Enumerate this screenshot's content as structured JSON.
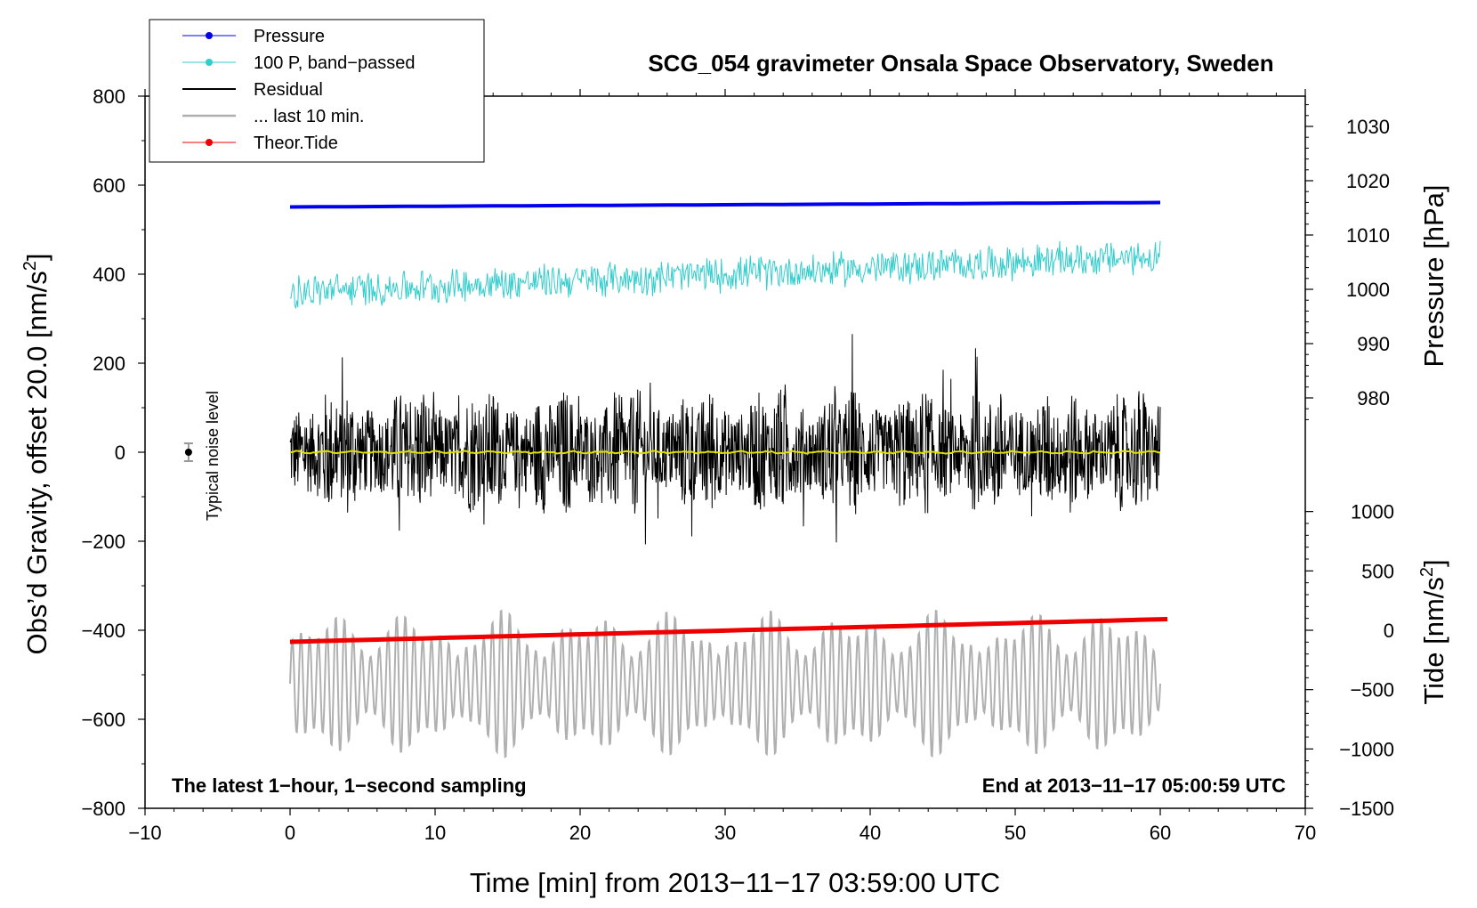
{
  "chart_data": {
    "type": "line",
    "title": "SCG_054 gravimeter Onsala Space Observatory, Sweden",
    "xlabel": "Time [min] from 2013−11−17 03:59:00 UTC",
    "ylabel_left": "Obs’d Gravity, offset 20.0 [nm/s²]",
    "ylabel_left_parts": {
      "main": "Obs’d Gravity, offset 20.0 [nm/s",
      "sup": "2",
      "close": "]"
    },
    "ylabel_right_pressure": "Pressure [hPa]",
    "ylabel_right_tide": "Tide [nm/s²]",
    "ylabel_right_tide_parts": {
      "main": "Tide [nm/s",
      "sup": "2",
      "close": "]"
    },
    "xlim": [
      -10,
      70
    ],
    "ylim": [
      -800,
      800
    ],
    "xticks": [
      -10,
      0,
      10,
      20,
      30,
      40,
      50,
      60,
      70
    ],
    "xtick_labels": [
      "−10",
      "0",
      "10",
      "20",
      "30",
      "40",
      "50",
      "60",
      "70"
    ],
    "yticks": [
      -800,
      -600,
      -400,
      -200,
      0,
      200,
      400,
      600,
      800
    ],
    "ytick_labels": [
      "−800",
      "−600",
      "−400",
      "−200",
      "0",
      "200",
      "400",
      "600",
      "800"
    ],
    "pressure_axis": {
      "ticks": [
        980,
        990,
        1000,
        1010,
        1020,
        1030
      ],
      "tick_labels": [
        "980",
        "990",
        "1000",
        "1010",
        "1020",
        "1030"
      ],
      "gravity_offset_at_1000": 366,
      "gravity_per_hpa": 12.2
    },
    "tide_axis": {
      "ticks": [
        -1500,
        -1000,
        -500,
        0,
        500,
        1000
      ],
      "tick_labels": [
        "−1500",
        "−1000",
        "−500",
        "0",
        "500",
        "1000"
      ],
      "gravity_offset_at_0": -400,
      "gravity_per_unit": 0.2667
    },
    "annotations": {
      "bottom_left": "The latest 1−hour, 1−second sampling",
      "bottom_right": "End at 2013−11−17 05:00:59 UTC",
      "noise_label": "Typical noise level",
      "noise_marker": {
        "x": -7,
        "y": 0,
        "err": 20
      }
    },
    "legend": {
      "position": "top-left",
      "entries": [
        "Pressure",
        "100 P, band−passed",
        "Residual",
        "... last 10 min.",
        "Theor.Tide"
      ]
    },
    "series": [
      {
        "name": "Pressure",
        "color": "#0000ee",
        "x_range": [
          0,
          60
        ],
        "start_gravity": 551,
        "end_gravity": 561,
        "style": "line-thick"
      },
      {
        "name": "100 P, band−passed",
        "color": "#33cccc",
        "x_range": [
          0,
          60
        ],
        "start_mean": 360,
        "end_mean": 440,
        "amplitude": 40,
        "style": "noise"
      },
      {
        "name": "Residual",
        "color": "#000000",
        "x_range": [
          0,
          60
        ],
        "mean": 0,
        "amplitude": 150,
        "max_peak": 300,
        "style": "noise"
      },
      {
        "name": "residual-smoothed",
        "color": "#e0e000",
        "x_range": [
          0,
          60
        ],
        "mean": 0,
        "style": "line"
      },
      {
        "name": "... last 10 min.",
        "color": "#b0b0b0",
        "x_range": [
          0,
          60
        ],
        "mean": -520,
        "amplitude": 170,
        "style": "oscillation"
      },
      {
        "name": "Theor.Tide",
        "color": "#ee0000",
        "x_range": [
          0,
          60.5
        ],
        "start_gravity": -426,
        "end_gravity": -375,
        "style": "line-thick"
      }
    ]
  }
}
